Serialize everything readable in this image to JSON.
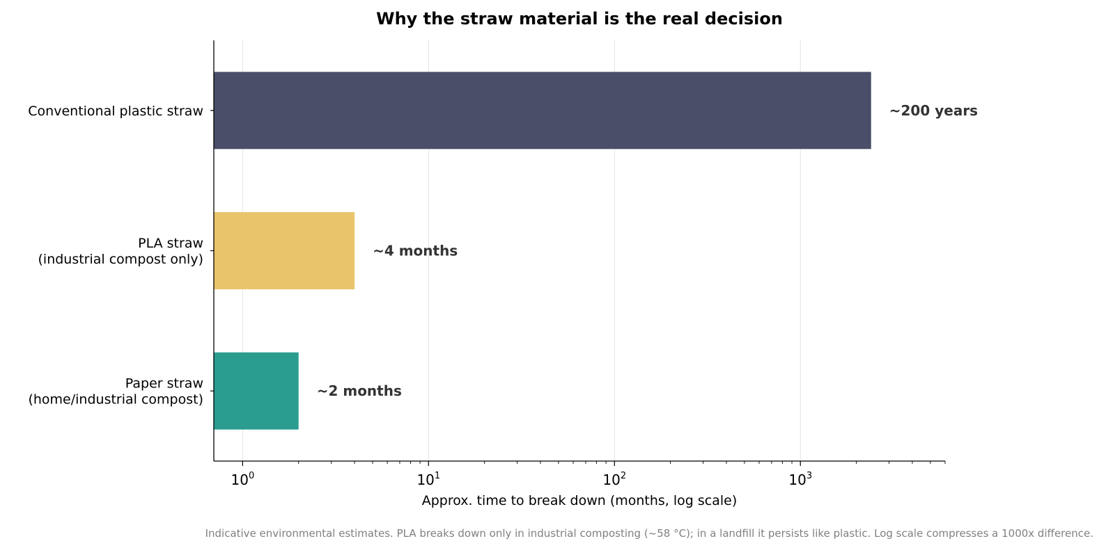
{
  "chart_data": {
    "type": "bar",
    "orientation": "horizontal",
    "title": "Why the straw material is the real decision",
    "xlabel": "Approx. time to break down (months, log scale)",
    "ylabel": "",
    "xscale": "log",
    "xlim": [
      0.7,
      6000
    ],
    "xticks": [
      {
        "base": "10",
        "exp": "0",
        "value": 1
      },
      {
        "base": "10",
        "exp": "1",
        "value": 10
      },
      {
        "base": "10",
        "exp": "2",
        "value": 100
      },
      {
        "base": "10",
        "exp": "3",
        "value": 1000
      }
    ],
    "grid": "x-major",
    "categories": [
      [
        "Conventional plastic straw"
      ],
      [
        "PLA straw",
        "(industrial compost only)"
      ],
      [
        "Paper straw",
        "(home/industrial compost)"
      ]
    ],
    "values": [
      2400,
      4,
      2
    ],
    "value_labels": [
      "~200 years",
      "~4 months",
      "~2 months"
    ],
    "colors": [
      "#4a4e69",
      "#e9c46a",
      "#2a9d8f"
    ],
    "footnote": "Indicative environmental estimates. PLA breaks down only in industrial composting (~58 °C); in a landfill it persists like plastic. Log scale compresses a 1000x difference."
  }
}
